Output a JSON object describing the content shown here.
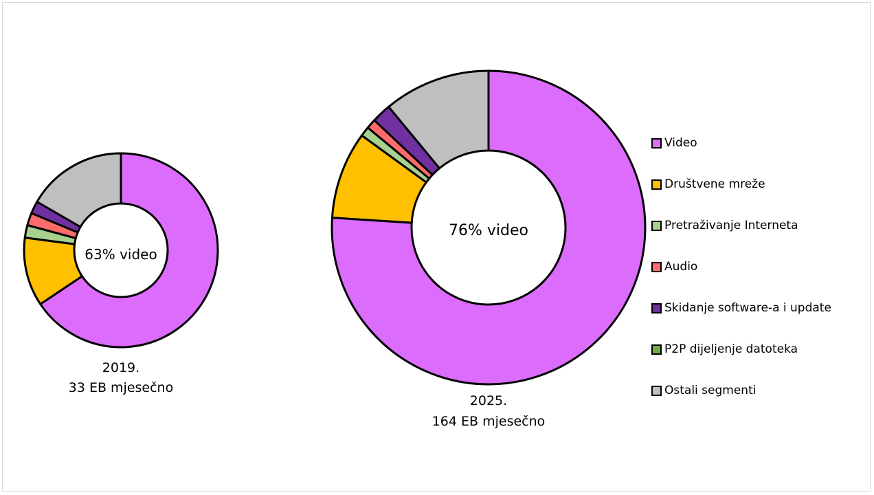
{
  "chart_data": {
    "type": "pie",
    "donut": true,
    "categories": [
      "Video",
      "Društvene mreže",
      "Pretraživanje Interneta",
      "Audio",
      "Skidanje software-a i update",
      "P2P dijeljenje datoteka",
      "Ostali segmenti"
    ],
    "colors": [
      "#dc6cfc",
      "#ffc000",
      "#a9d18e",
      "#ff6b6b",
      "#7030a0",
      "#70ad47",
      "#bfbfbf"
    ],
    "series": [
      {
        "year_label": "2019.",
        "total_label": "33 EB mjesečno",
        "center_label": "63% video",
        "values": [
          63,
          11,
          2,
          2,
          2,
          0,
          16
        ]
      },
      {
        "year_label": "2025.",
        "total_label": "164 EB mjesečno",
        "center_label": "76% video",
        "values": [
          76,
          9,
          1,
          1,
          2,
          0,
          11
        ]
      }
    ],
    "legend_position": "right"
  }
}
